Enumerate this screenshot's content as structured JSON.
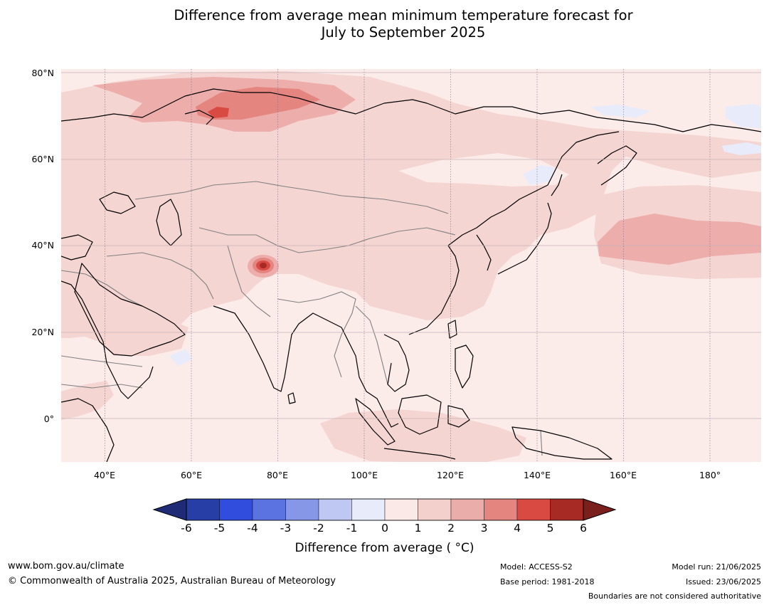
{
  "title": {
    "line1": "Difference from average mean minimum temperature forecast for",
    "line2": "July to September 2025"
  },
  "map": {
    "lat_labels": [
      "80°N",
      "60°N",
      "40°N",
      "20°N",
      "0°"
    ],
    "lon_labels": [
      "40°E",
      "60°E",
      "80°E",
      "100°E",
      "120°E",
      "140°E",
      "160°E",
      "180°"
    ],
    "lat_range": [
      -10,
      80
    ],
    "lon_range": [
      30,
      192
    ],
    "colors": {
      "background": "#fbebe9",
      "level_1_2": "#f4d5d2",
      "level_2_3": "#ecadab",
      "level_3_4": "#e48580",
      "level_4_5": "#d94a42",
      "level_5_6": "#a82a24",
      "level_m1_0": "#e8ecfa",
      "coast": "#000000",
      "border": "#808080",
      "grid": "#7a6a8a"
    }
  },
  "colorbar": {
    "ticks": [
      "-6",
      "-5",
      "-4",
      "-3",
      "-2",
      "-1",
      "0",
      "1",
      "2",
      "3",
      "4",
      "5",
      "6"
    ],
    "colors": [
      "#283ea7",
      "#314dde",
      "#5a73e1",
      "#8797e8",
      "#bfc8f3",
      "#e8ecfa",
      "#fbe9e8",
      "#f4d0cd",
      "#ebadaa",
      "#e48580",
      "#d94a42",
      "#a82a24"
    ],
    "low_extend_color": "#1f2c75",
    "high_extend_color": "#7a1f1c",
    "label": "Difference from average ( °C)"
  },
  "footer": {
    "website": "www.bom.gov.au/climate",
    "copyright": "© Commonwealth of Australia 2025, Australian Bureau of Meteorology",
    "model": "Model: ACCESS-S2",
    "base_period": "Base period: 1981-2018",
    "model_run": "Model run: 21/06/2025",
    "issued": "Issued: 23/06/2025",
    "disclaimer": "Boundaries are not considered authoritative"
  }
}
